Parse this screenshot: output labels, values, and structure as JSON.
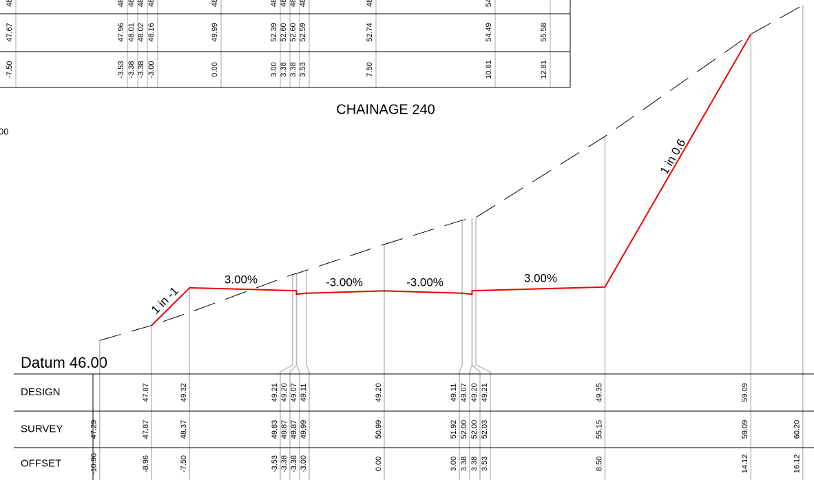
{
  "section_above": {
    "rows": [
      {
        "values": [
          "48",
          "48",
          "48",
          "48",
          "48",
          "48",
          "48",
          "48",
          "48",
          "48",
          "48",
          "54",
          null
        ]
      },
      {
        "values": [
          "47.67",
          "47.96",
          "48.01",
          "48.02",
          "48.16",
          "49.99",
          "52.39",
          "52.60",
          "52.60",
          "52.59",
          "52.74",
          "54.49",
          "55.58"
        ]
      },
      {
        "values": [
          "-7.50",
          "-3.53",
          "-3.38",
          "-3.38",
          "-3.00",
          "0.00",
          "3.00",
          "3.38",
          "3.38",
          "3.53",
          "7.50",
          "10.81",
          "12.81"
        ]
      }
    ]
  },
  "title": "CHAINAGE 240",
  "left_fragment": "00",
  "slopes": [
    "1 in -1",
    "3.00%",
    "-3.00%",
    "-3.00%",
    "3.00%",
    "1 in 0.6"
  ],
  "datum": "Datum 46.00",
  "table": {
    "rows": [
      {
        "label": "DESIGN",
        "values": [
          null,
          "47.87",
          "49.32",
          "49.21",
          "49.20",
          "49.07",
          "49.11",
          "49.20",
          "49.11",
          "49.07",
          "49.20",
          "49.21",
          "49.35",
          "59.09",
          null
        ]
      },
      {
        "label": "SURVEY",
        "values": [
          "47.29",
          "47.87",
          "48.37",
          "49.83",
          "49.87",
          "49.87",
          "49.99",
          "50.99",
          "51.92",
          "52.00",
          "52.00",
          "52.03",
          "55.15",
          "59.09",
          "60.20"
        ]
      },
      {
        "label": "OFFSET",
        "values": [
          "-10.96",
          "-8.96",
          "-7.50",
          "-3.53",
          "-3.38",
          "-3.38",
          "-3.00",
          "0.00",
          "3.00",
          "3.38",
          "3.38",
          "3.53",
          "8.50",
          "14.12",
          "16.12"
        ]
      }
    ]
  }
}
